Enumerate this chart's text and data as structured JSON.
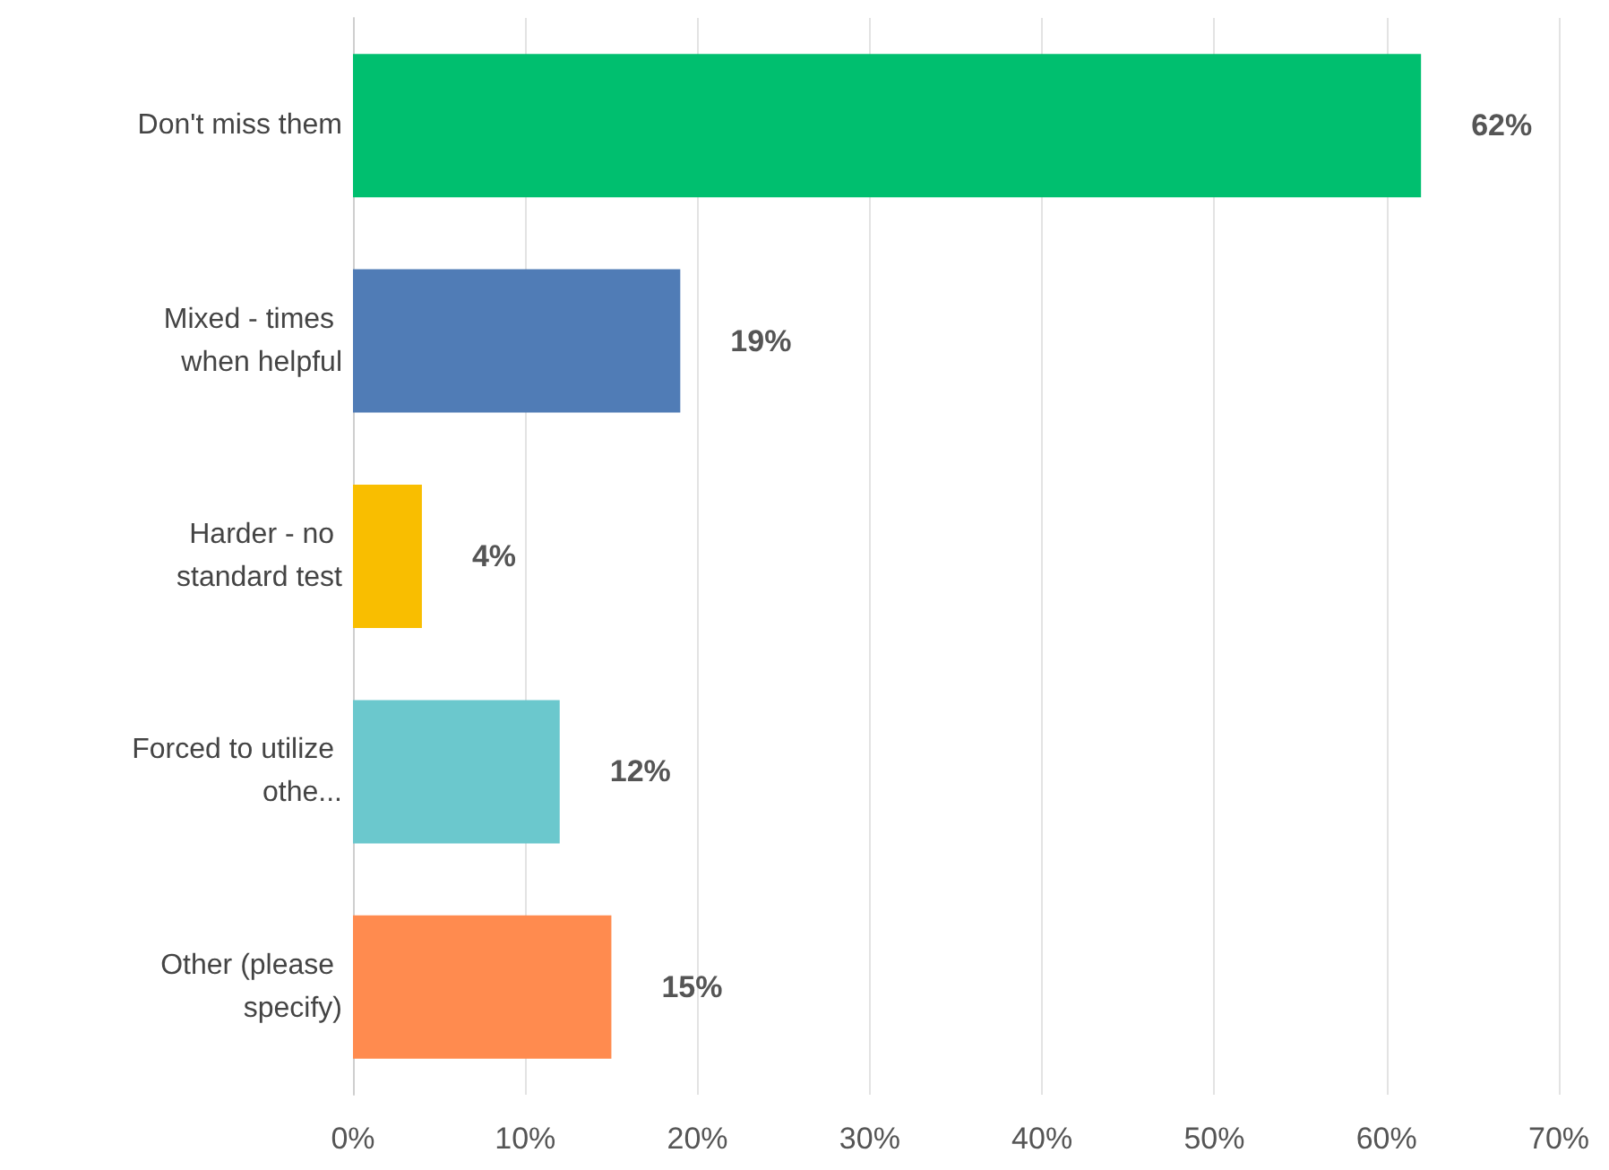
{
  "chart_data": {
    "type": "bar",
    "orientation": "horizontal",
    "categories": [
      "Don't miss them",
      "Mixed - times when helpful",
      "Harder - no standard test",
      "Forced to utilize othe...",
      "Other (please specify)"
    ],
    "values": [
      62,
      19,
      4,
      12,
      15
    ],
    "colors": [
      "#00bf6f",
      "#507cb6",
      "#f9be00",
      "#6bc8cd",
      "#ff8b4f"
    ],
    "value_labels": [
      "62%",
      "19%",
      "4%",
      "12%",
      "15%"
    ],
    "xlim": [
      0,
      70
    ],
    "xticks": [
      {
        "value": 0,
        "label": "0%"
      },
      {
        "value": 10,
        "label": "10%"
      },
      {
        "value": 20,
        "label": "20%"
      },
      {
        "value": 30,
        "label": "30%"
      },
      {
        "value": 40,
        "label": "40%"
      },
      {
        "value": 50,
        "label": "50%"
      },
      {
        "value": 60,
        "label": "60%"
      },
      {
        "value": 70,
        "label": "70%"
      }
    ],
    "grid": "x"
  }
}
